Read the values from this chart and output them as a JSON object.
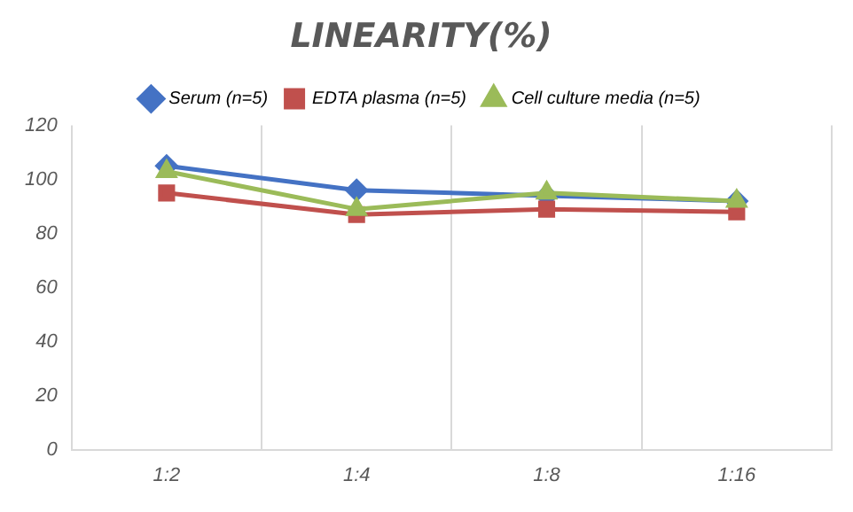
{
  "chart_data": {
    "type": "line",
    "title": "LINEARITY(%)",
    "categories": [
      "1:2",
      "1:4",
      "1:8",
      "1:16"
    ],
    "series": [
      {
        "name": "Serum (n=5)",
        "color": "#4472c4",
        "marker": "diamond",
        "values": [
          105,
          96,
          94,
          92
        ]
      },
      {
        "name": "EDTA plasma (n=5)",
        "color": "#c0504d",
        "marker": "square",
        "values": [
          95,
          87,
          89,
          88
        ]
      },
      {
        "name": "Cell culture media (n=5)",
        "color": "#9bbb59",
        "marker": "triangle",
        "values": [
          103,
          89,
          95,
          92
        ]
      }
    ],
    "ylim": [
      0,
      120
    ],
    "yticks": [
      0,
      20,
      40,
      60,
      80,
      100,
      120
    ],
    "grid": "x",
    "legend": "top"
  }
}
